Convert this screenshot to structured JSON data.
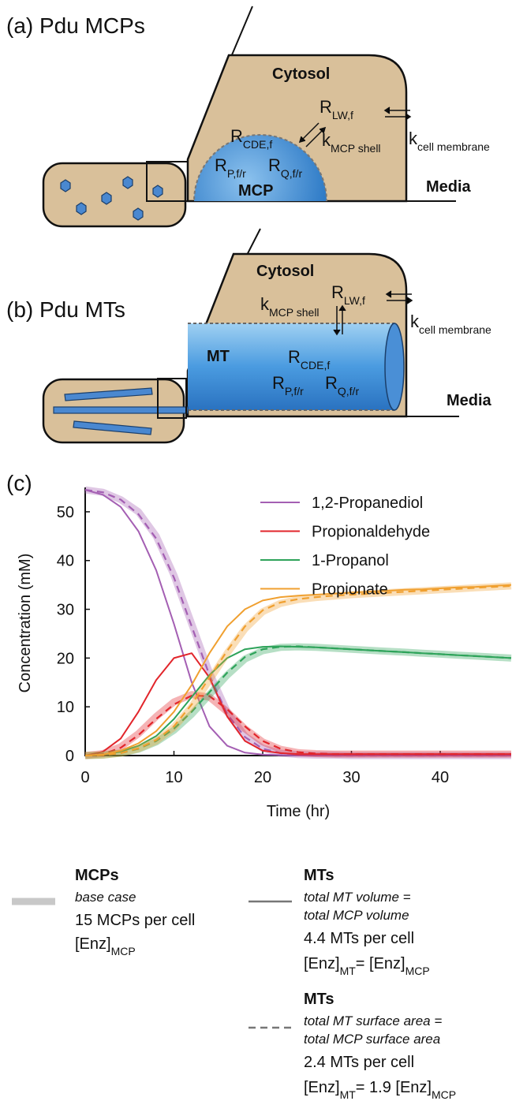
{
  "panel_a": {
    "label": "(a) Pdu MCPs",
    "cytosol": "Cytosol",
    "r_lw": {
      "main": "R",
      "sub": "LW,f"
    },
    "k_membrane": {
      "main": "k",
      "sub": "cell membrane"
    },
    "r_cde": {
      "main": "R",
      "sub": "CDE,f"
    },
    "k_shell": {
      "main": "k",
      "sub": "MCP shell"
    },
    "r_p": {
      "main": "R",
      "sub": "P,f/r"
    },
    "r_q": {
      "main": "R",
      "sub": "Q,f/r"
    },
    "compartment": "MCP",
    "media": "Media"
  },
  "panel_b": {
    "label": "(b) Pdu MTs",
    "cytosol": "Cytosol",
    "r_lw": {
      "main": "R",
      "sub": "LW,f"
    },
    "k_membrane": {
      "main": "k",
      "sub": "cell membrane"
    },
    "k_shell": {
      "main": "k",
      "sub": "MCP shell"
    },
    "compartment": "MT",
    "r_cde": {
      "main": "R",
      "sub": "CDE,f"
    },
    "r_p": {
      "main": "R",
      "sub": "P,f/r"
    },
    "r_q": {
      "main": "R",
      "sub": "Q,f/r"
    },
    "media": "Media"
  },
  "chart_data": {
    "type": "line",
    "label": "(c)",
    "x_label": "Time (hr)",
    "y_label": "Concentration (mM)",
    "xlim": [
      0,
      48
    ],
    "ylim": [
      0,
      55
    ],
    "xticks": [
      0,
      10,
      20,
      30,
      40
    ],
    "yticks": [
      0,
      10,
      20,
      30,
      40,
      50
    ],
    "x": [
      0,
      2,
      4,
      6,
      8,
      10,
      12,
      14,
      16,
      18,
      20,
      22,
      24,
      26,
      28,
      30,
      32,
      34,
      36,
      38,
      40,
      42,
      44,
      46,
      48
    ],
    "series": [
      {
        "name": "1,2-Propanediol",
        "color": "#a45fb3",
        "curves": [
          {
            "style": "band",
            "values": [
              54.5,
              54,
              52.5,
              50,
              45,
              37,
              27,
              17,
              9,
              4,
              1.5,
              0.5,
              0.2,
              0.1,
              0.1,
              0,
              0,
              0,
              0,
              0,
              0,
              0,
              0,
              0,
              0
            ]
          },
          {
            "style": "solid",
            "values": [
              54.5,
              53.5,
              51,
              46,
              38,
              27,
              15,
              6,
              2,
              0.6,
              0.2,
              0.1,
              0,
              0,
              0,
              0,
              0,
              0,
              0,
              0,
              0,
              0,
              0,
              0,
              0
            ]
          },
          {
            "style": "dashed",
            "values": [
              54.5,
              54,
              52.5,
              49.5,
              44.5,
              36.5,
              26.5,
              16.5,
              8.5,
              3.8,
              1.4,
              0.5,
              0.2,
              0.1,
              0,
              0,
              0,
              0,
              0,
              0,
              0,
              0,
              0,
              0,
              0
            ]
          }
        ]
      },
      {
        "name": "Propionaldehyde",
        "color": "#e2252b",
        "curves": [
          {
            "style": "band",
            "values": [
              0,
              0.4,
              1.8,
              4.5,
              8,
              11,
              12.5,
              12,
              9,
              5.5,
              2.8,
              1.3,
              0.6,
              0.4,
              0.3,
              0.3,
              0.3,
              0.3,
              0.3,
              0.3,
              0.3,
              0.3,
              0.3,
              0.3,
              0.3
            ]
          },
          {
            "style": "solid",
            "values": [
              0,
              0.8,
              3.5,
              9,
              15.5,
              20,
              21,
              16,
              8,
              3,
              1,
              0.5,
              0.3,
              0.3,
              0.3,
              0.3,
              0.3,
              0.3,
              0.3,
              0.3,
              0.3,
              0.3,
              0.3,
              0.3,
              0.3
            ]
          },
          {
            "style": "dashed",
            "values": [
              0,
              0.3,
              1.6,
              4.2,
              7.5,
              10.5,
              12.3,
              12.2,
              9.5,
              6,
              3,
              1.4,
              0.7,
              0.4,
              0.3,
              0.3,
              0.3,
              0.3,
              0.3,
              0.3,
              0.3,
              0.3,
              0.3,
              0.3,
              0.3
            ]
          }
        ]
      },
      {
        "name": "1-Propanol",
        "color": "#2ea35a",
        "curves": [
          {
            "style": "band",
            "values": [
              0,
              0.1,
              0.5,
              1.3,
              2.8,
              5.2,
              8.5,
              12.5,
              16.5,
              19.8,
              21.5,
              22.2,
              22.3,
              22.2,
              22,
              21.8,
              21.6,
              21.4,
              21.2,
              21,
              20.8,
              20.6,
              20.4,
              20.2,
              20
            ]
          },
          {
            "style": "solid",
            "values": [
              0,
              0.2,
              0.8,
              2,
              4,
              7.5,
              12,
              16.5,
              20,
              21.8,
              22.3,
              22.4,
              22.3,
              22.2,
              22,
              21.8,
              21.6,
              21.4,
              21.2,
              21,
              20.8,
              20.6,
              20.4,
              20.2,
              20
            ]
          },
          {
            "style": "dashed",
            "values": [
              0,
              0.1,
              0.5,
              1.4,
              3,
              5.5,
              9,
              13,
              17,
              20.2,
              21.8,
              22.3,
              22.4,
              22.2,
              22,
              21.8,
              21.6,
              21.4,
              21.2,
              21,
              20.8,
              20.6,
              20.4,
              20.2,
              20
            ]
          }
        ]
      },
      {
        "name": "Propionate",
        "color": "#f0a030",
        "curves": [
          {
            "style": "band",
            "values": [
              0,
              0.1,
              0.5,
              1.4,
              3,
              5.8,
              10,
              15.5,
              21,
              26,
              29.5,
              31.2,
              32,
              32.4,
              32.7,
              33,
              33.2,
              33.4,
              33.6,
              33.8,
              34,
              34.2,
              34.4,
              34.6,
              34.8
            ]
          },
          {
            "style": "solid",
            "values": [
              0,
              0.2,
              1,
              2.5,
              5,
              9,
              14.5,
              21,
              26.5,
              30,
              31.8,
              32.5,
              32.8,
              33,
              33.2,
              33.4,
              33.6,
              33.8,
              34,
              34.1,
              34.3,
              34.5,
              34.6,
              34.8,
              35
            ]
          },
          {
            "style": "dashed",
            "values": [
              0,
              0.1,
              0.5,
              1.5,
              3.2,
              6,
              10.5,
              16,
              21.5,
              26.5,
              29.8,
              31.4,
              32.1,
              32.5,
              32.8,
              33,
              33.2,
              33.4,
              33.6,
              33.8,
              34,
              34.2,
              34.4,
              34.6,
              34.8
            ]
          }
        ]
      }
    ]
  },
  "style_legend": [
    {
      "title": "MCPs",
      "lines": [
        "base case"
      ],
      "count": "15 MCPs per cell",
      "enzyme": [
        "[Enz]",
        "MCP"
      ]
    },
    {
      "title": "MTs",
      "lines": [
        "total MT volume =",
        "total MCP volume"
      ],
      "count": "4.4 MTs per cell",
      "enzyme": [
        "[Enz]",
        "MT",
        "= [Enz]",
        "MCP"
      ]
    },
    {
      "title": "MTs",
      "lines": [
        "total MT surface area =",
        "total MCP surface area"
      ],
      "count": "2.4 MTs per cell",
      "enzyme": [
        "[Enz]",
        "MT",
        "= 1.9 [Enz]",
        "MCP"
      ]
    }
  ]
}
